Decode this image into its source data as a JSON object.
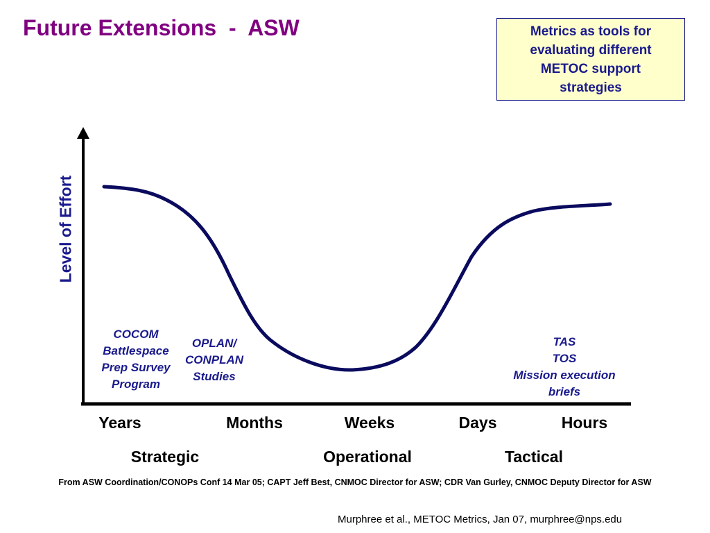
{
  "title": "Future Extensions  -  ASW",
  "note_box": {
    "lines": [
      "Metrics as tools for",
      "evaluating different",
      "METOC support",
      "strategies"
    ]
  },
  "axis": {
    "ylabel": "Level of Effort"
  },
  "ticks": [
    "Years",
    "Months",
    "Weeks",
    "Days",
    "Hours"
  ],
  "phases": [
    "Strategic",
    "Operational",
    "Tactical"
  ],
  "annotations": [
    {
      "lines": [
        "COCOM",
        "Battlespace",
        "Prep Survey",
        "Program"
      ]
    },
    {
      "lines": [
        "OPLAN/",
        "CONPLAN",
        "Studies"
      ]
    },
    {
      "lines": [
        "TAS",
        "TOS",
        "Mission execution",
        "briefs"
      ]
    }
  ],
  "source": "From ASW Coordination/CONOPs Conf 14 Mar 05; CAPT Jeff Best, CNMOC Director for ASW; CDR Van Gurley, CNMOC Deputy Director for ASW",
  "footer": "Murphree et al., METOC Metrics, Jan 07, murphree@nps.edu",
  "colors": {
    "title": "#800080",
    "curve": "#0a0a5e",
    "annotation": "#1a1a8c",
    "note_bg": "#ffffcc",
    "note_text": "#1a1a8c",
    "ylabel": "#1a1a8c",
    "axis": "#000000"
  }
}
